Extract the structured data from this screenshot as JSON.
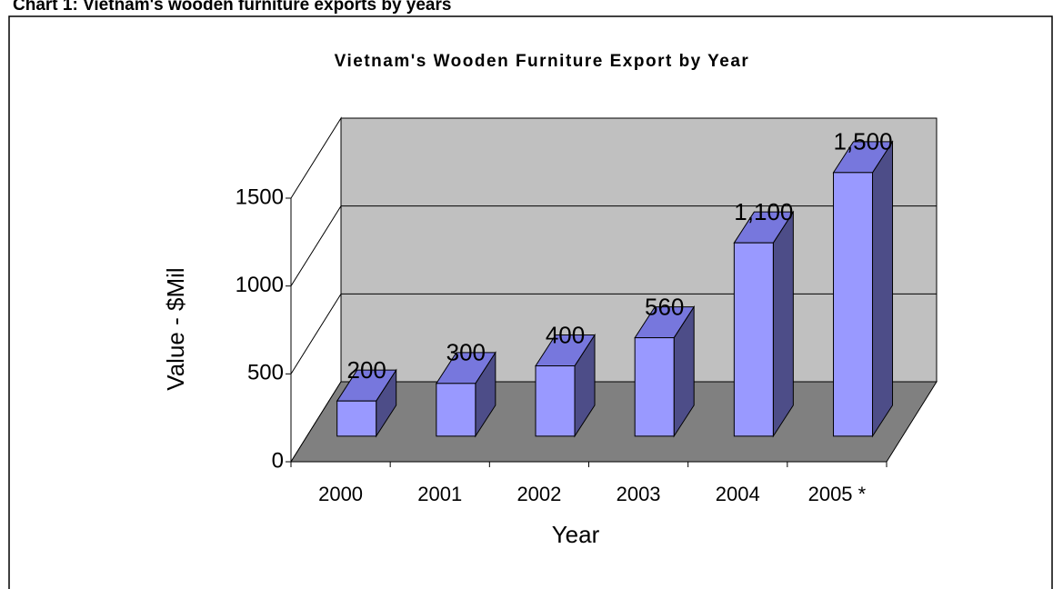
{
  "heading": "Chart 1: Vietnam's wooden furniture exports by years",
  "chart_data": {
    "type": "bar3d",
    "title": "Vietnam's Wooden Furniture Export by Year",
    "x_label": "Year",
    "y_label": "Value - $Mil",
    "categories": [
      "2000",
      "2001",
      "2002",
      "2003",
      "2004",
      "2005 *"
    ],
    "values": [
      200,
      300,
      400,
      560,
      1100,
      1500
    ],
    "value_labels": [
      "200",
      "300",
      "400",
      "560",
      "1,100",
      "1,500"
    ],
    "color": "#9999ff",
    "ylim": [
      0,
      1500
    ],
    "yticks": [
      0,
      500,
      1000,
      1500
    ],
    "grid": true
  }
}
